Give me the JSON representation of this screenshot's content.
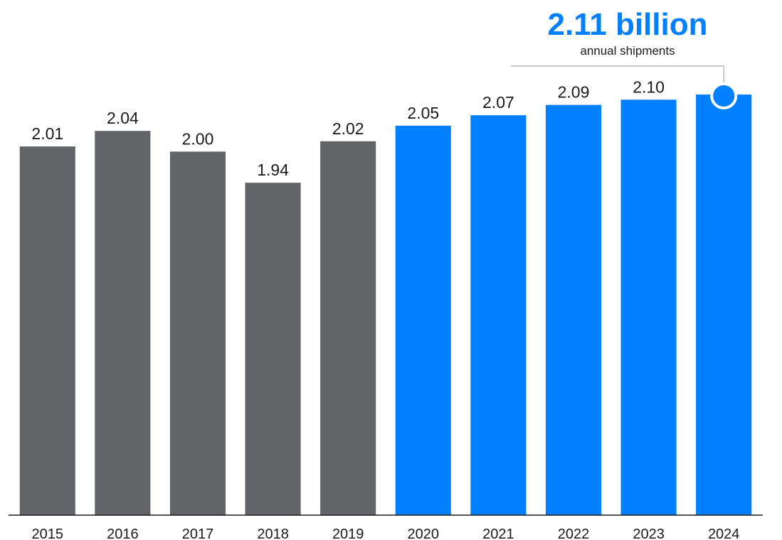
{
  "chart_data": {
    "type": "bar",
    "categories": [
      "2015",
      "2016",
      "2017",
      "2018",
      "2019",
      "2020",
      "2021",
      "2022",
      "2023",
      "2024"
    ],
    "values": [
      2.01,
      2.04,
      2.0,
      1.94,
      2.02,
      2.05,
      2.07,
      2.09,
      2.1,
      2.11
    ],
    "value_labels": [
      "2.01",
      "2.04",
      "2.00",
      "1.94",
      "2.02",
      "2.05",
      "2.07",
      "2.09",
      "2.10",
      ""
    ],
    "title": "",
    "xlabel": "",
    "ylabel": "",
    "ylim": [
      0,
      2.11
    ],
    "grid": false,
    "highlight_from_index": 5,
    "colors": {
      "past": "#636467",
      "recent": "#0080ff",
      "callout_line": "#c8c8c8",
      "axis": "#1a1a1a"
    },
    "callout": {
      "value": "2.11 billion",
      "caption": "annual shipments",
      "target_index": 9
    }
  }
}
